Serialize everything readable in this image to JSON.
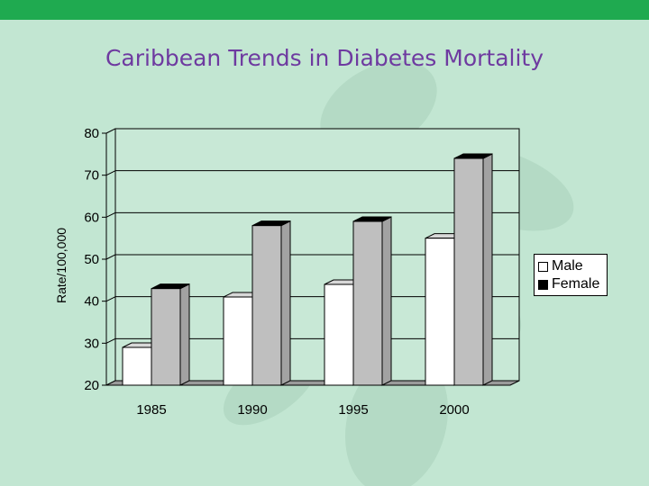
{
  "slide": {
    "title": "Caribbean Trends in Diabetes Mortality"
  },
  "colors": {
    "background": "#c2e6d2",
    "top_bar": "#1faa50",
    "title": "#6e3aa0",
    "male": "#ffffff",
    "female": "#bfbfbf"
  },
  "chart_data": {
    "type": "bar",
    "title": "",
    "xlabel": "",
    "ylabel": "Rate/100,000",
    "categories": [
      "1985",
      "1990",
      "1995",
      "2000"
    ],
    "series": [
      {
        "name": "Male",
        "values": [
          29,
          41,
          44,
          55
        ]
      },
      {
        "name": "Female",
        "values": [
          43,
          58,
          59,
          74
        ]
      }
    ],
    "ylim": [
      20,
      80
    ],
    "yticks": [
      20,
      30,
      40,
      50,
      60,
      70,
      80
    ],
    "grid": true,
    "legend": "right",
    "style": "3d"
  }
}
